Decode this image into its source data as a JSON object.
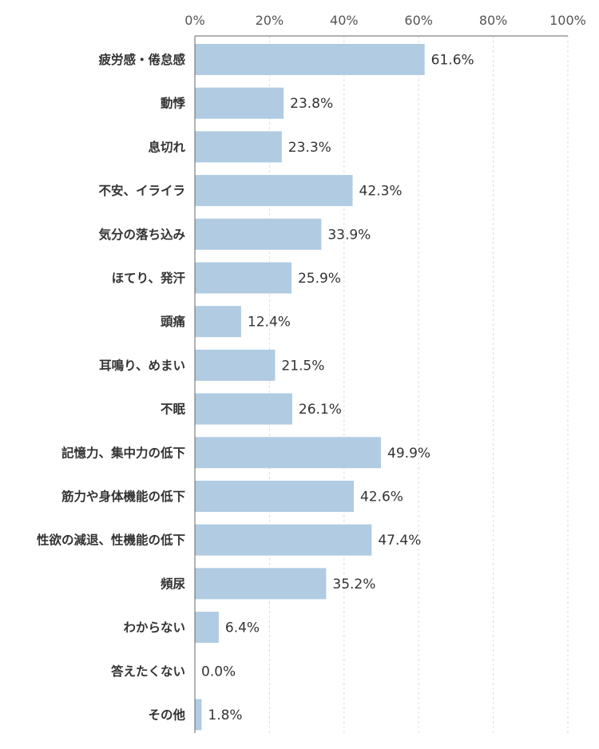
{
  "chart_data": {
    "type": "bar",
    "orientation": "horizontal",
    "categories": [
      "疲労感・倦怠感",
      "動悸",
      "息切れ",
      "不安、イライラ",
      "気分の落ち込み",
      "ほてり、発汗",
      "頭痛",
      "耳鳴り、めまい",
      "不眠",
      "記憶力、集中力の低下",
      "筋力や身体機能の低下",
      "性欲の減退、性機能の低下",
      "頻尿",
      "わからない",
      "答えたくない",
      "その他"
    ],
    "values": [
      61.6,
      23.8,
      23.3,
      42.3,
      33.9,
      25.9,
      12.4,
      21.5,
      26.1,
      49.9,
      42.6,
      47.4,
      35.2,
      6.4,
      0.0,
      1.8
    ],
    "value_labels": [
      "61.6%",
      "23.8%",
      "23.3%",
      "42.3%",
      "33.9%",
      "25.9%",
      "12.4%",
      "21.5%",
      "26.1%",
      "49.9%",
      "42.6%",
      "47.4%",
      "35.2%",
      "6.4%",
      "0.0%",
      "1.8%"
    ],
    "x_ticks": [
      0,
      20,
      40,
      60,
      80,
      100
    ],
    "x_tick_labels": [
      "0%",
      "20%",
      "40%",
      "60%",
      "80%",
      "100%"
    ],
    "xlim": [
      0,
      100
    ],
    "axis_position": "top",
    "grid": true,
    "title": "",
    "xlabel": "",
    "ylabel": "",
    "bar_color": "#b0cbe2",
    "grid_color": "#dddddd",
    "axis_color": "#666666"
  }
}
